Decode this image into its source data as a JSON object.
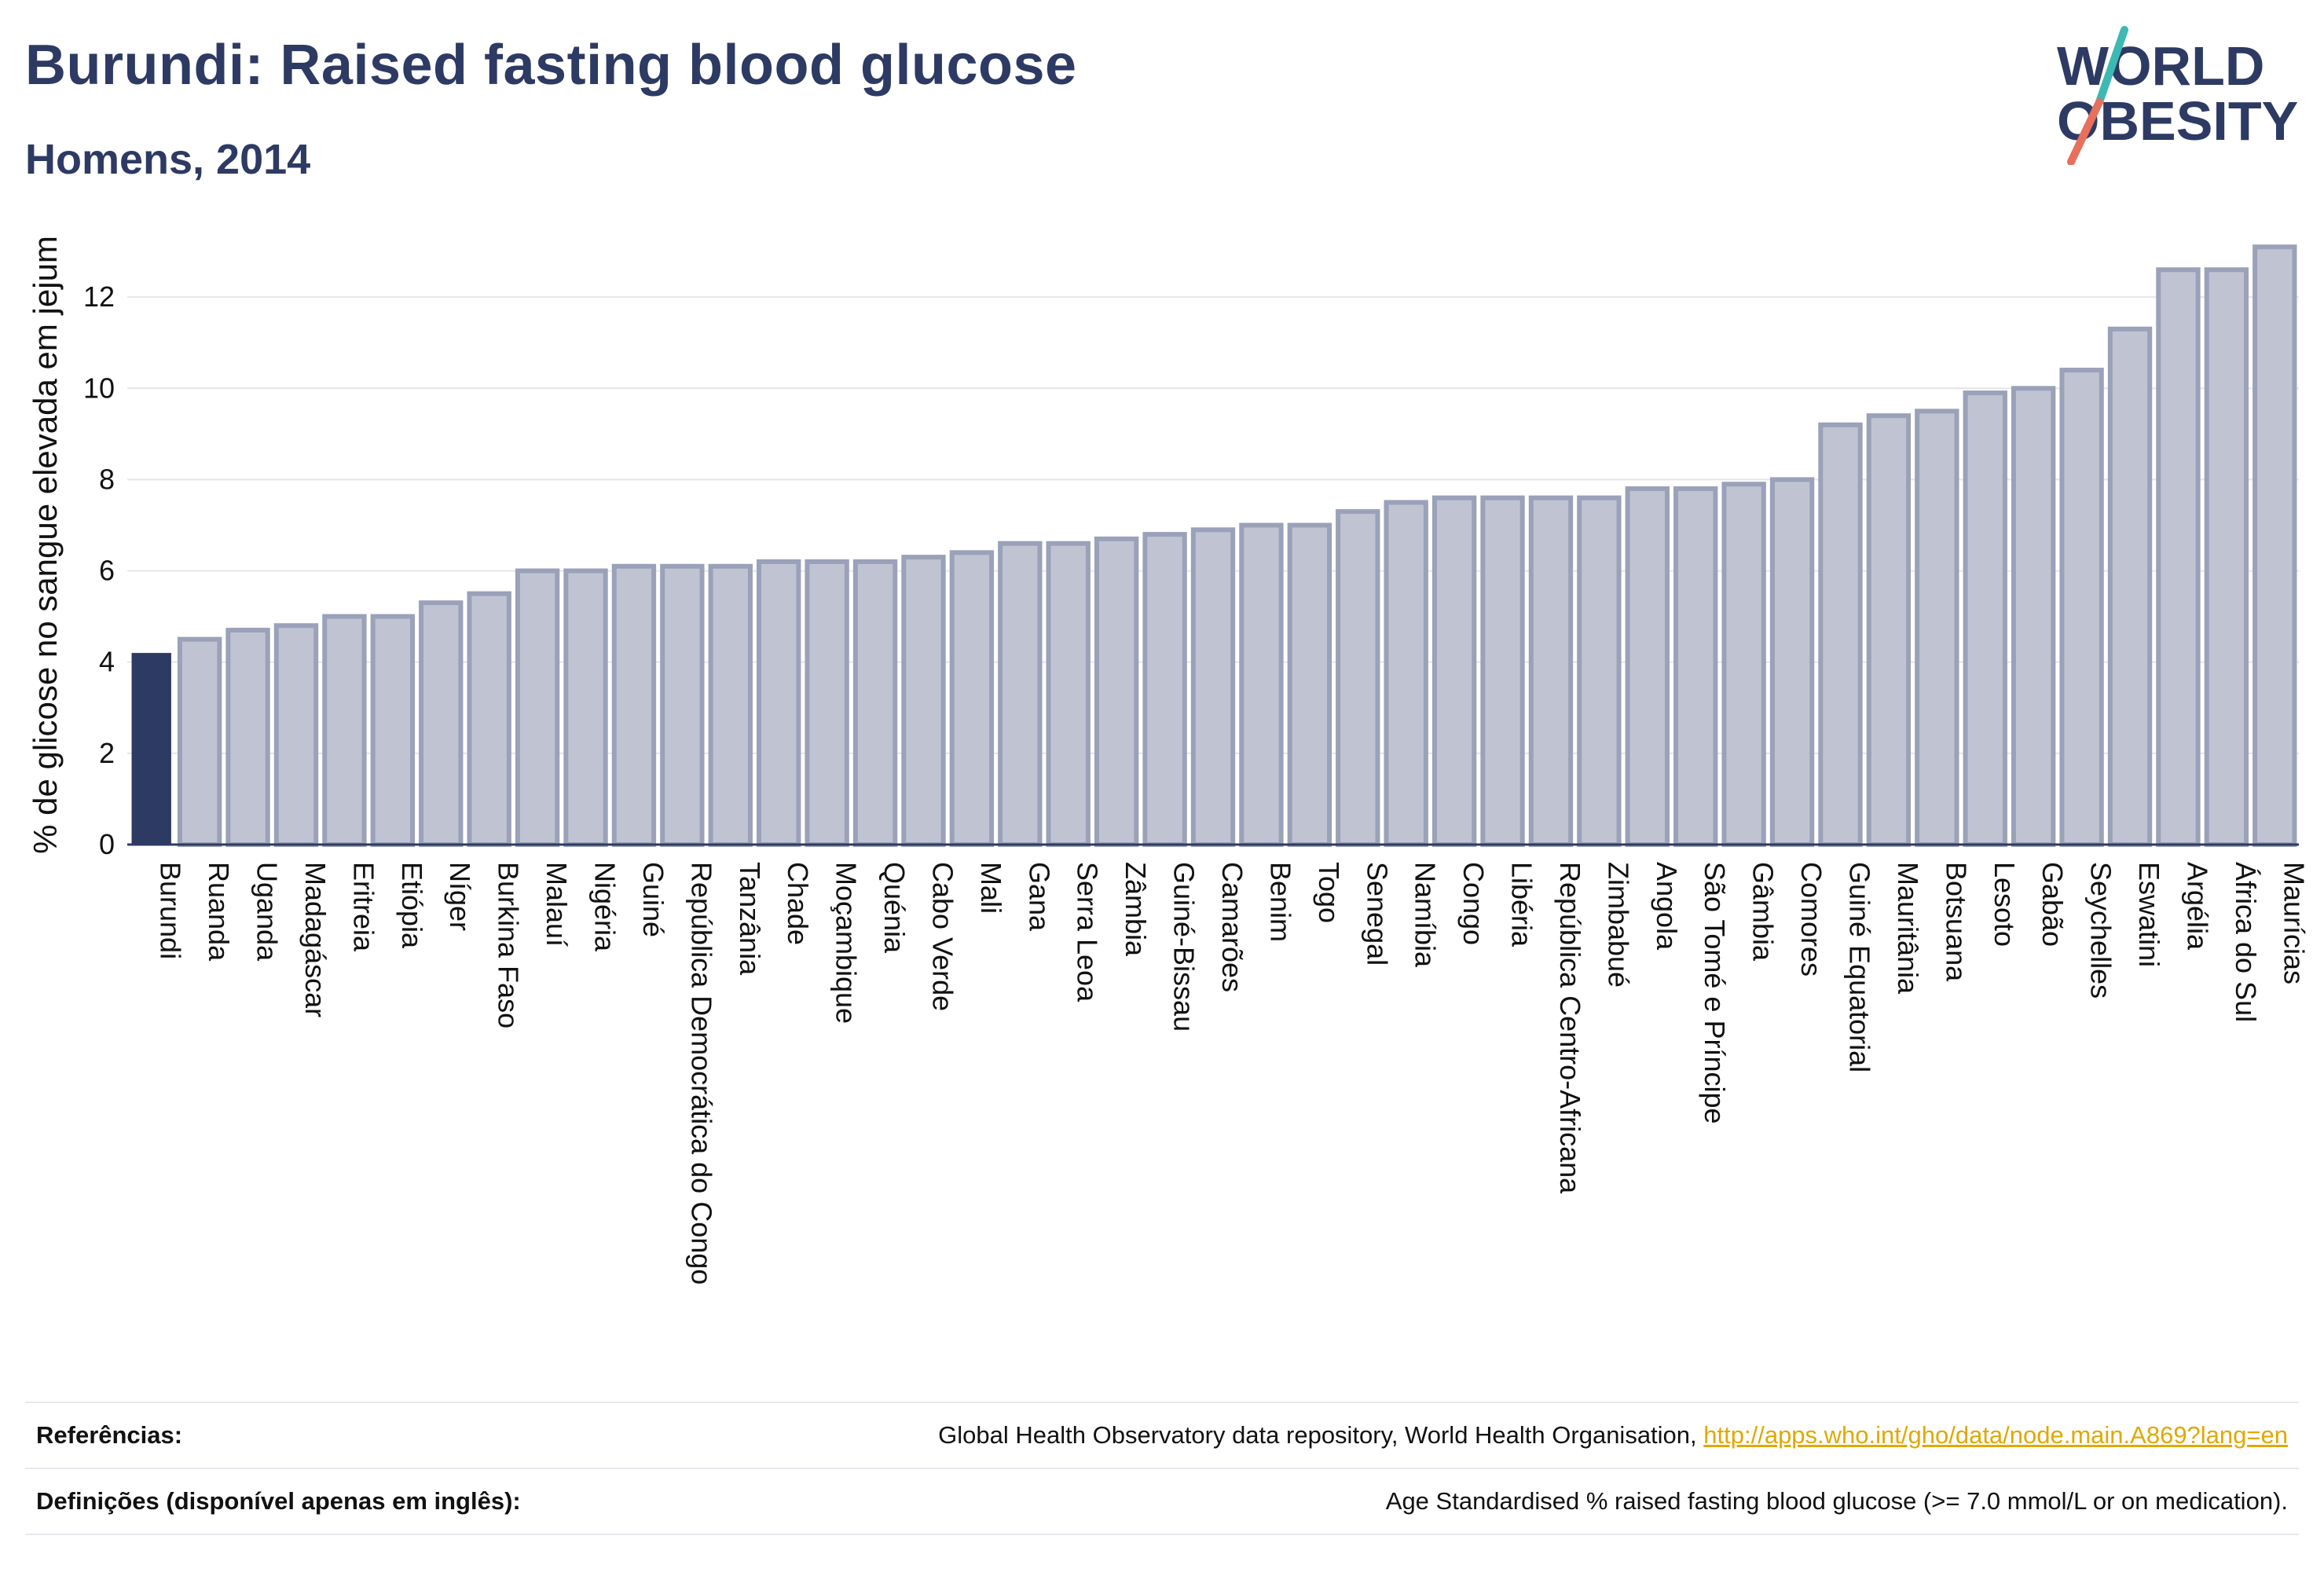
{
  "header": {
    "title": "Burundi: Raised fasting blood glucose",
    "subtitle": "Homens, 2014"
  },
  "logo": {
    "line1": "WORLD",
    "line2": "OBESITY"
  },
  "colors": {
    "highlight": "#2d3a63",
    "bar": "#c0c4d2",
    "bar_border": "#9aa1b8",
    "grid": "#e6e6ea",
    "axis": "#2d3a63",
    "logo_teal": "#3cb9b2",
    "logo_coral": "#e76f5c"
  },
  "chart_data": {
    "type": "bar",
    "title": "Burundi: Raised fasting blood glucose",
    "subtitle": "Homens, 2014",
    "xlabel": "",
    "ylabel": "% de glicose no sangue elevada em jejum",
    "ylim": [
      0,
      14
    ],
    "yticks": [
      0,
      2,
      4,
      6,
      8,
      10,
      12
    ],
    "highlight": "Burundi",
    "grid": true,
    "categories": [
      "Burundi",
      "Ruanda",
      "Uganda",
      "Madagáscar",
      "Eritreia",
      "Etiópia",
      "Níger",
      "Burkina Faso",
      "Malauí",
      "Nigéria",
      "Guiné",
      "República Democrática do Congo",
      "Tanzânia",
      "Chade",
      "Moçambique",
      "Quénia",
      "Cabo Verde",
      "Mali",
      "Gana",
      "Serra Leoa",
      "Zâmbia",
      "Guiné-Bissau",
      "Camarões",
      "Benim",
      "Togo",
      "Senegal",
      "Namíbia",
      "Congo",
      "Libéria",
      "República Centro-Africana",
      "Zimbabué",
      "Angola",
      "São Tomé e Príncipe",
      "Gâmbia",
      "Comores",
      "Guiné Equatorial",
      "Mauritânia",
      "Botsuana",
      "Lesoto",
      "Gabão",
      "Seychelles",
      "Eswatini",
      "Argélia",
      "África do Sul",
      "Maurícias"
    ],
    "values": [
      4.2,
      4.5,
      4.7,
      4.8,
      5.0,
      5.0,
      5.3,
      5.5,
      6.0,
      6.0,
      6.1,
      6.1,
      6.1,
      6.2,
      6.2,
      6.2,
      6.3,
      6.4,
      6.6,
      6.6,
      6.7,
      6.8,
      6.9,
      7.0,
      7.0,
      7.3,
      7.5,
      7.6,
      7.6,
      7.6,
      7.6,
      7.8,
      7.8,
      7.9,
      8.0,
      9.2,
      9.4,
      9.5,
      9.9,
      10.0,
      10.4,
      11.3,
      12.6,
      12.6,
      13.1
    ]
  },
  "footer": {
    "references_label": "Referências:",
    "references_text": "Global Health Observatory data repository, World Health Organisation,",
    "references_link": "http://apps.who.int/gho/data/node.main.A869?lang=en",
    "definitions_label": "Definições (disponível apenas em inglês):",
    "definitions_text": "Age Standardised % raised fasting blood glucose (>= 7.0 mmol/L or on medication)."
  }
}
